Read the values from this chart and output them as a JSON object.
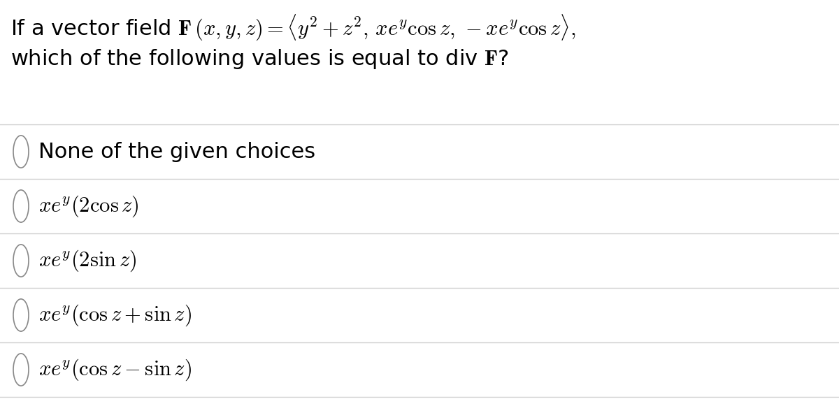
{
  "bg_color": "#ffffff",
  "question_line1": "If a vector field $\\mathbf{F}\\,(x, y, z) = \\langle y^2 + z^2,\\, xe^y \\cos z,\\, -xe^y \\cos z\\rangle,$",
  "question_line2": "which of the following values is equal to div $\\mathbf{F}$?",
  "options": [
    "None of the given choices",
    "$xe^y(2 \\cos z)$",
    "$xe^y(2 \\sin z)$",
    "$xe^y(\\cos z + \\sin z)$",
    "$xe^y(\\cos z - \\sin z)$"
  ],
  "divider_color": "#d0d0d0",
  "text_color": "#000000",
  "circle_color": "#888888",
  "question_fontsize": 22,
  "option_fontsize": 22,
  "fig_width": 12.0,
  "fig_height": 5.71,
  "dpi": 100
}
